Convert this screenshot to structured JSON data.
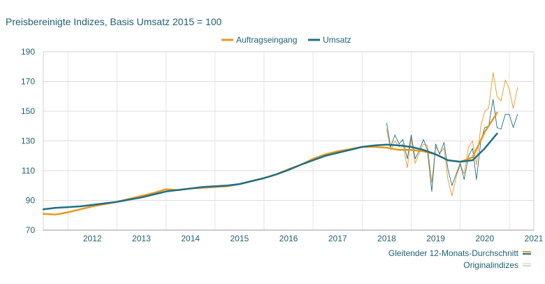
{
  "chart_data": {
    "type": "line",
    "title": "Preisbereinigte Indizes, Basis Umsatz 2015 = 100",
    "ylim": [
      70,
      190
    ],
    "y_ticks": [
      70,
      90,
      110,
      130,
      150,
      170,
      190
    ],
    "x_tick_labels": [
      "2012",
      "2013",
      "2014",
      "2015",
      "2016",
      "2017",
      "2018",
      "2019",
      "2020",
      "2021"
    ],
    "legend_top": [
      {
        "name": "Auftragseingang",
        "color": "#e8981f"
      },
      {
        "name": "Umsatz",
        "color": "#1f6f86"
      }
    ],
    "legend_bottom": [
      {
        "name": "Gleitender 12-Monats-Durchschnitt",
        "style": "thick"
      },
      {
        "name": "Originalindizes",
        "style": "thin"
      }
    ],
    "series": [
      {
        "name": "Auftragseingang (Gleitender 12-Monats-Durchschnitt)",
        "color": "#e8981f",
        "width": 2.5,
        "x_start": 2011.5,
        "points": [
          [
            2011.5,
            81
          ],
          [
            2011.75,
            80.5
          ],
          [
            2012,
            82
          ],
          [
            2012.25,
            84
          ],
          [
            2012.5,
            86
          ],
          [
            2012.75,
            87.5
          ],
          [
            2013,
            89
          ],
          [
            2013.25,
            91
          ],
          [
            2013.5,
            93
          ],
          [
            2013.75,
            95
          ],
          [
            2014,
            97.5
          ],
          [
            2014.25,
            97
          ],
          [
            2014.5,
            98
          ],
          [
            2014.75,
            98.5
          ],
          [
            2015,
            99
          ],
          [
            2015.25,
            99.5
          ],
          [
            2015.5,
            101
          ],
          [
            2015.75,
            103
          ],
          [
            2016,
            105
          ],
          [
            2016.25,
            107.5
          ],
          [
            2016.5,
            111
          ],
          [
            2016.75,
            114
          ],
          [
            2017,
            118
          ],
          [
            2017.25,
            121
          ],
          [
            2017.5,
            123
          ],
          [
            2017.75,
            124.5
          ],
          [
            2018,
            126
          ],
          [
            2018.25,
            126
          ],
          [
            2018.5,
            125.5
          ],
          [
            2018.75,
            124
          ],
          [
            2019,
            124
          ],
          [
            2019.25,
            123
          ],
          [
            2019.5,
            121
          ],
          [
            2019.75,
            117
          ],
          [
            2020,
            116
          ],
          [
            2020.25,
            119
          ],
          [
            2020.5,
            136
          ],
          [
            2020.75,
            149
          ]
        ]
      },
      {
        "name": "Umsatz (Gleitender 12-Monats-Durchschnitt)",
        "color": "#1f6f86",
        "width": 2.5,
        "points": [
          [
            2011.5,
            84
          ],
          [
            2011.75,
            85
          ],
          [
            2012,
            85.5
          ],
          [
            2012.25,
            86
          ],
          [
            2012.5,
            87
          ],
          [
            2012.75,
            88
          ],
          [
            2013,
            89
          ],
          [
            2013.25,
            90.5
          ],
          [
            2013.5,
            92
          ],
          [
            2013.75,
            94
          ],
          [
            2014,
            96
          ],
          [
            2014.25,
            97
          ],
          [
            2014.5,
            98
          ],
          [
            2014.75,
            99
          ],
          [
            2015,
            99.5
          ],
          [
            2015.25,
            100
          ],
          [
            2015.5,
            101
          ],
          [
            2015.75,
            103
          ],
          [
            2016,
            105
          ],
          [
            2016.25,
            107.5
          ],
          [
            2016.5,
            110.5
          ],
          [
            2016.75,
            114
          ],
          [
            2017,
            117
          ],
          [
            2017.25,
            120
          ],
          [
            2017.5,
            122
          ],
          [
            2017.75,
            124
          ],
          [
            2018,
            126
          ],
          [
            2018.25,
            127
          ],
          [
            2018.5,
            127.5
          ],
          [
            2018.75,
            127
          ],
          [
            2019,
            126
          ],
          [
            2019.25,
            124
          ],
          [
            2019.5,
            121
          ],
          [
            2019.75,
            117
          ],
          [
            2020,
            116
          ],
          [
            2020.25,
            117
          ],
          [
            2020.5,
            125
          ],
          [
            2020.75,
            135
          ]
        ]
      },
      {
        "name": "Auftragseingang (Originalindizes)",
        "color": "#e8981f",
        "width": 0.9,
        "points": [
          [
            2018.5,
            138
          ],
          [
            2018.58,
            124
          ],
          [
            2018.67,
            130
          ],
          [
            2018.75,
            126
          ],
          [
            2018.83,
            128
          ],
          [
            2018.92,
            112
          ],
          [
            2019,
            132
          ],
          [
            2019.08,
            115
          ],
          [
            2019.17,
            122
          ],
          [
            2019.25,
            128
          ],
          [
            2019.33,
            127
          ],
          [
            2019.42,
            102
          ],
          [
            2019.5,
            126
          ],
          [
            2019.58,
            122
          ],
          [
            2019.67,
            125
          ],
          [
            2019.75,
            104
          ],
          [
            2019.83,
            93
          ],
          [
            2019.92,
            106
          ],
          [
            2020,
            114
          ],
          [
            2020.08,
            108
          ],
          [
            2020.17,
            126
          ],
          [
            2020.25,
            130
          ],
          [
            2020.33,
            114
          ],
          [
            2020.42,
            140
          ],
          [
            2020.5,
            150
          ],
          [
            2020.58,
            152
          ],
          [
            2020.67,
            176
          ],
          [
            2020.75,
            160
          ],
          [
            2020.83,
            157
          ],
          [
            2020.92,
            171
          ],
          [
            2021,
            165
          ],
          [
            2021.08,
            152
          ],
          [
            2021.17,
            166
          ]
        ]
      },
      {
        "name": "Umsatz (Originalindizes)",
        "color": "#1f6f86",
        "width": 0.9,
        "points": [
          [
            2018.5,
            142
          ],
          [
            2018.58,
            126
          ],
          [
            2018.67,
            134
          ],
          [
            2018.75,
            128
          ],
          [
            2018.83,
            131
          ],
          [
            2018.92,
            118
          ],
          [
            2019,
            134
          ],
          [
            2019.08,
            118
          ],
          [
            2019.17,
            124
          ],
          [
            2019.25,
            131
          ],
          [
            2019.33,
            124
          ],
          [
            2019.42,
            96
          ],
          [
            2019.5,
            128
          ],
          [
            2019.58,
            121
          ],
          [
            2019.67,
            129
          ],
          [
            2019.75,
            111
          ],
          [
            2019.83,
            100
          ],
          [
            2019.92,
            108
          ],
          [
            2020,
            115
          ],
          [
            2020.08,
            104
          ],
          [
            2020.17,
            120
          ],
          [
            2020.25,
            125
          ],
          [
            2020.33,
            104
          ],
          [
            2020.42,
            130
          ],
          [
            2020.5,
            139
          ],
          [
            2020.58,
            140
          ],
          [
            2020.67,
            158
          ],
          [
            2020.75,
            139
          ],
          [
            2020.83,
            138
          ],
          [
            2020.92,
            148
          ],
          [
            2021,
            148
          ],
          [
            2021.08,
            139
          ],
          [
            2021.17,
            148
          ]
        ]
      }
    ]
  }
}
